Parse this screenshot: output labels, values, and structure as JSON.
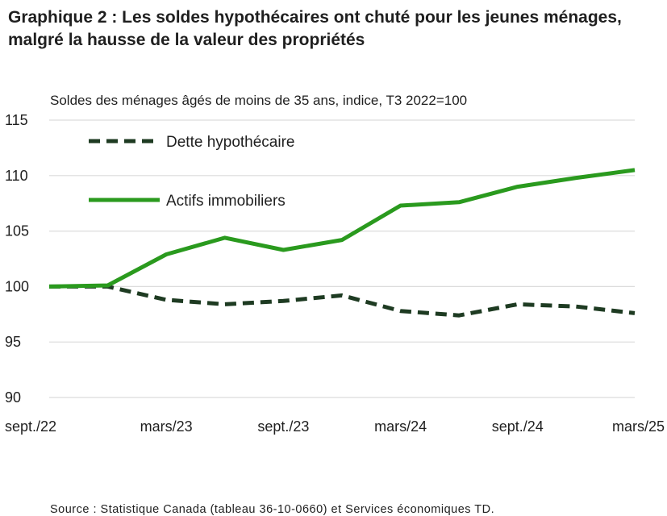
{
  "header": {
    "title": "Graphique 2 : Les soldes hypothécaires ont chuté pour les jeunes ménages, malgré la hausse de la valeur des propriétés",
    "subtitle": "Soldes des ménages âgés de moins de 35 ans, indice, T3 2022=100"
  },
  "footer": {
    "source": "Source : Statistique Canada (tableau 36-10-0660) et Services économiques TD."
  },
  "colors": {
    "debt": "#1e3b22",
    "assets": "#2a9a1e",
    "grid": "#dcdcdc"
  },
  "chart_data": {
    "type": "line",
    "title": "Graphique 2 : Les soldes hypothécaires ont chuté pour les jeunes ménages, malgré la hausse de la valeur des propriétés",
    "subtitle": "Soldes des ménages âgés de moins de 35 ans, indice, T3 2022=100",
    "xlabel": "",
    "ylabel": "",
    "x": [
      "sept./22",
      "déc./22",
      "mars/23",
      "juin/23",
      "sept./23",
      "déc./23",
      "mars/24",
      "juin/24",
      "sept./24",
      "déc./24",
      "mars/25"
    ],
    "x_tick_labels": [
      "sept./22",
      "mars/23",
      "sept./23",
      "mars/24",
      "sept./24",
      "mars/25"
    ],
    "x_tick_index": [
      0,
      2,
      4,
      6,
      8,
      10
    ],
    "ylim": [
      90,
      115
    ],
    "yticks": [
      90,
      95,
      100,
      105,
      110,
      115
    ],
    "grid": true,
    "legend_position": "top-left",
    "series": [
      {
        "name": "Dette hypothécaire",
        "style": "dashed",
        "values": [
          100,
          100,
          98.8,
          98.4,
          98.7,
          99.2,
          97.8,
          97.4,
          98.4,
          98.2,
          97.6
        ]
      },
      {
        "name": "Actifs immobiliers",
        "style": "solid",
        "values": [
          100,
          100.1,
          102.9,
          104.4,
          103.3,
          104.2,
          107.3,
          107.6,
          109.0,
          109.8,
          110.5
        ]
      }
    ]
  }
}
